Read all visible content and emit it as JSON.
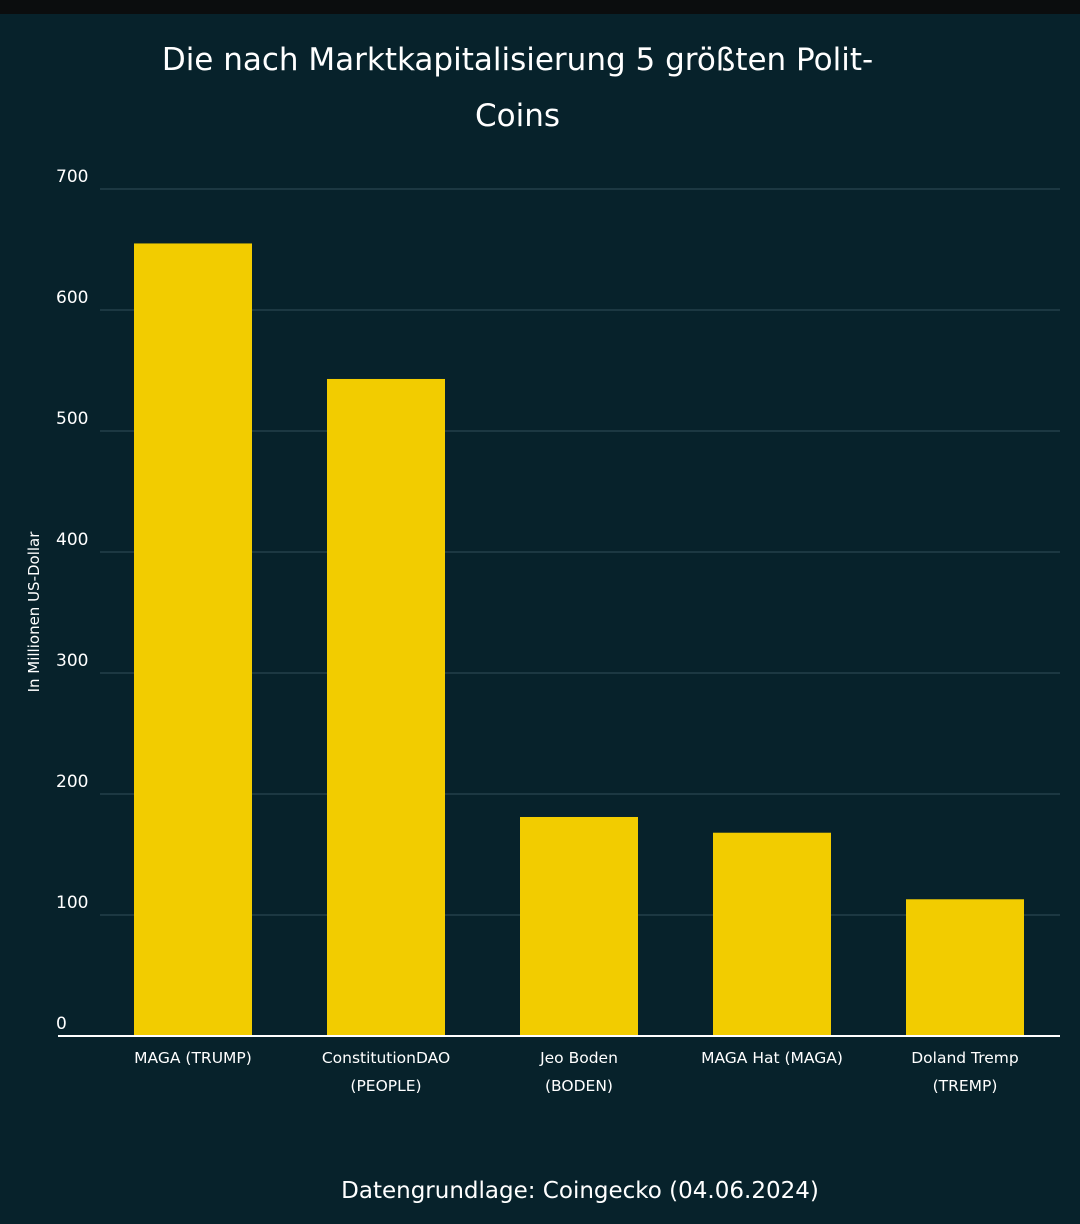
{
  "chart_data": {
    "type": "bar",
    "title": "Die nach Marktkapitalisierung 5 größten Polit-Coins",
    "title_lines": [
      "Die nach Marktkapitalisierung 5 größten Polit-",
      "Coins"
    ],
    "ylabel": "In Millionen US-Dollar",
    "xlabel": "",
    "categories": [
      [
        "MAGA (TRUMP)"
      ],
      [
        "ConstitutionDAO",
        "(PEOPLE)"
      ],
      [
        "Jeo Boden",
        "(BODEN)"
      ],
      [
        "MAGA Hat (MAGA)"
      ],
      [
        "Doland Tremp",
        "(TREMP)"
      ]
    ],
    "values": [
      655,
      543,
      181,
      168,
      113
    ],
    "ylim": [
      0,
      700
    ],
    "yticks": [
      0,
      100,
      200,
      300,
      400,
      500,
      600,
      700
    ],
    "grid": true,
    "legend": "none",
    "bar_color": "#f2cc00",
    "background_color": "#07222b",
    "source": "Datengrundlage: Coingecko (04.06.2024)"
  }
}
